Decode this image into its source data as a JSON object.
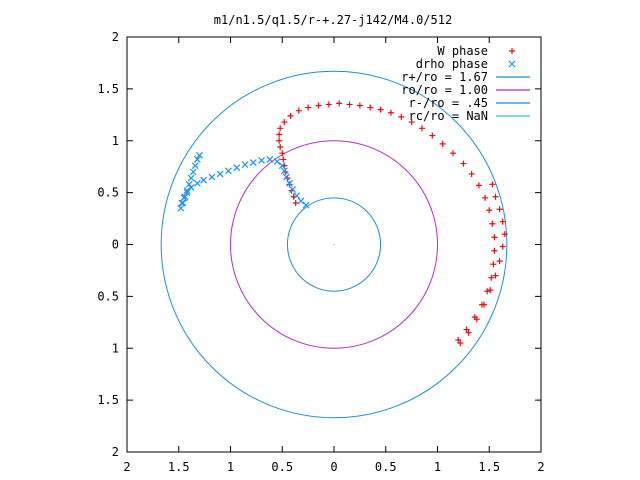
{
  "chart_data": {
    "type": "scatter",
    "title": "m1/n1.5/q1.5/r-+.27-j142/M4.0/512",
    "xlabel": "",
    "ylabel": "",
    "xlim": [
      -2,
      2
    ],
    "ylim": [
      -2,
      2
    ],
    "grid": false,
    "legend_position": "top-right",
    "x_ticks": [
      -2,
      -1.5,
      -1,
      -0.5,
      0,
      0.5,
      1,
      1.5,
      2
    ],
    "x_tick_labels": [
      "2",
      "1.5",
      "1",
      "0.5",
      "0",
      "0.5",
      "1",
      "1.5",
      "2"
    ],
    "y_ticks": [
      2,
      1.5,
      1,
      0.5,
      0,
      -0.5,
      -1,
      -1.5,
      -2
    ],
    "y_tick_labels": [
      "2",
      "1.5",
      "1",
      "0.5",
      "0",
      "0.5",
      "1",
      "1.5",
      "2"
    ],
    "circles": [
      {
        "name": "r+/ro = 1.67",
        "radius": 1.67,
        "color": "#1f8fd0"
      },
      {
        "name": "ro/ro = 1.00",
        "radius": 1.0,
        "color": "#b030c0"
      },
      {
        "name": "r-/ro = .45",
        "radius": 0.45,
        "color": "#1f8fd0"
      },
      {
        "name": "rc/ro = NaN",
        "radius": null,
        "color": "#2fc8d8"
      }
    ],
    "series": [
      {
        "name": "W phase",
        "marker": "+",
        "color": "#e01010",
        "points": [
          [
            -0.37,
            0.4
          ],
          [
            -0.39,
            0.46
          ],
          [
            -0.41,
            0.52
          ],
          [
            -0.43,
            0.58
          ],
          [
            -0.45,
            0.64
          ],
          [
            -0.47,
            0.7
          ],
          [
            -0.48,
            0.76
          ],
          [
            -0.49,
            0.82
          ],
          [
            -0.5,
            0.88
          ],
          [
            -0.52,
            0.94
          ],
          [
            -0.53,
            1.0
          ],
          [
            -0.53,
            1.06
          ],
          [
            -0.52,
            1.12
          ],
          [
            -0.48,
            1.18
          ],
          [
            -0.42,
            1.24
          ],
          [
            -0.34,
            1.29
          ],
          [
            -0.25,
            1.32
          ],
          [
            -0.15,
            1.34
          ],
          [
            -0.05,
            1.35
          ],
          [
            0.05,
            1.36
          ],
          [
            0.15,
            1.35
          ],
          [
            0.25,
            1.34
          ],
          [
            0.35,
            1.32
          ],
          [
            0.45,
            1.3
          ],
          [
            0.55,
            1.27
          ],
          [
            0.65,
            1.23
          ],
          [
            0.75,
            1.18
          ],
          [
            0.85,
            1.12
          ],
          [
            0.95,
            1.05
          ],
          [
            1.05,
            0.97
          ],
          [
            1.15,
            0.88
          ],
          [
            1.25,
            0.78
          ],
          [
            1.33,
            0.68
          ],
          [
            1.4,
            0.57
          ],
          [
            1.46,
            0.45
          ],
          [
            1.5,
            0.33
          ],
          [
            1.53,
            0.2
          ],
          [
            1.55,
            0.07
          ],
          [
            1.55,
            -0.06
          ],
          [
            1.54,
            -0.19
          ],
          [
            1.52,
            -0.32
          ],
          [
            1.48,
            -0.45
          ],
          [
            1.43,
            -0.58
          ],
          [
            1.36,
            -0.7
          ],
          [
            1.28,
            -0.82
          ],
          [
            1.2,
            -0.92
          ],
          [
            1.22,
            -0.95
          ],
          [
            1.3,
            -0.85
          ],
          [
            1.38,
            -0.72
          ],
          [
            1.45,
            -0.58
          ],
          [
            1.51,
            -0.44
          ],
          [
            1.56,
            -0.3
          ],
          [
            1.6,
            -0.16
          ],
          [
            1.63,
            -0.02
          ],
          [
            1.65,
            0.1
          ],
          [
            1.63,
            0.22
          ],
          [
            1.6,
            0.34
          ],
          [
            1.56,
            0.46
          ],
          [
            1.53,
            0.58
          ]
        ]
      },
      {
        "name": "drho phase",
        "marker": "x",
        "color": "#1a8fff",
        "points": [
          [
            -0.27,
            0.38
          ],
          [
            -0.32,
            0.42
          ],
          [
            -0.36,
            0.47
          ],
          [
            -0.4,
            0.53
          ],
          [
            -0.43,
            0.59
          ],
          [
            -0.46,
            0.65
          ],
          [
            -0.48,
            0.71
          ],
          [
            -0.5,
            0.76
          ],
          [
            -0.55,
            0.8
          ],
          [
            -0.62,
            0.82
          ],
          [
            -0.7,
            0.81
          ],
          [
            -0.78,
            0.79
          ],
          [
            -0.86,
            0.77
          ],
          [
            -0.94,
            0.74
          ],
          [
            -1.02,
            0.71
          ],
          [
            -1.1,
            0.68
          ],
          [
            -1.18,
            0.65
          ],
          [
            -1.26,
            0.62
          ],
          [
            -1.32,
            0.59
          ],
          [
            -1.38,
            0.55
          ],
          [
            -1.42,
            0.5
          ],
          [
            -1.45,
            0.45
          ],
          [
            -1.47,
            0.4
          ],
          [
            -1.48,
            0.35
          ],
          [
            -1.46,
            0.4
          ],
          [
            -1.44,
            0.46
          ],
          [
            -1.42,
            0.52
          ],
          [
            -1.4,
            0.58
          ],
          [
            -1.38,
            0.64
          ],
          [
            -1.36,
            0.7
          ],
          [
            -1.34,
            0.76
          ],
          [
            -1.32,
            0.82
          ],
          [
            -1.3,
            0.86
          ]
        ]
      }
    ]
  }
}
